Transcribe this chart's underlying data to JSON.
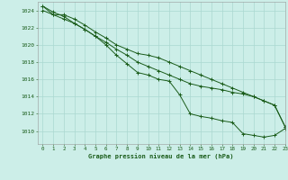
{
  "title": "Graphe pression niveau de la mer (hPa)",
  "background_color": "#cceee8",
  "grid_color": "#aad8d0",
  "line_color": "#1a5c1a",
  "xlim": [
    -0.5,
    23
  ],
  "ylim": [
    1008.5,
    1025.0
  ],
  "yticks": [
    1010,
    1012,
    1014,
    1016,
    1018,
    1020,
    1022,
    1024
  ],
  "xticks": [
    0,
    1,
    2,
    3,
    4,
    5,
    6,
    7,
    8,
    9,
    10,
    11,
    12,
    13,
    14,
    15,
    16,
    17,
    18,
    19,
    20,
    21,
    22,
    23
  ],
  "series1_x": [
    0,
    1,
    2,
    3,
    4,
    5,
    6,
    7,
    8,
    9,
    10,
    11,
    12,
    13,
    14,
    15,
    16,
    17,
    18,
    19,
    20,
    21,
    22,
    23
  ],
  "series1_y": [
    1024.5,
    1023.5,
    1023.5,
    1023.0,
    1022.3,
    1021.5,
    1020.8,
    1020.0,
    1019.5,
    1019.0,
    1018.8,
    1018.5,
    1018.0,
    1017.5,
    1017.0,
    1016.5,
    1016.0,
    1015.5,
    1015.0,
    1014.5,
    1014.0,
    1013.5,
    1013.0,
    1010.5
  ],
  "series2_x": [
    0,
    1,
    2,
    3,
    4,
    5,
    6,
    7,
    8,
    9,
    10,
    11,
    12,
    13,
    14,
    15,
    16,
    17,
    18,
    19,
    20,
    21,
    22,
    23
  ],
  "series2_y": [
    1024.5,
    1023.8,
    1023.3,
    1022.5,
    1021.8,
    1021.0,
    1020.3,
    1019.5,
    1018.8,
    1018.0,
    1017.5,
    1017.0,
    1016.5,
    1016.0,
    1015.5,
    1015.2,
    1015.0,
    1014.8,
    1014.5,
    1014.3,
    1014.0,
    1013.5,
    1013.0,
    1010.5
  ],
  "series3_x": [
    0,
    1,
    2,
    3,
    4,
    5,
    6,
    7,
    8,
    9,
    10,
    11,
    12,
    13,
    14,
    15,
    16,
    17,
    18,
    19,
    20,
    21,
    22,
    23
  ],
  "series3_y": [
    1024.0,
    1023.5,
    1023.0,
    1022.5,
    1021.8,
    1021.0,
    1020.0,
    1018.8,
    1017.8,
    1016.8,
    1016.5,
    1016.0,
    1015.8,
    1014.2,
    1012.0,
    1011.7,
    1011.5,
    1011.2,
    1011.0,
    1009.7,
    1009.5,
    1009.3,
    1009.5,
    1010.3
  ]
}
